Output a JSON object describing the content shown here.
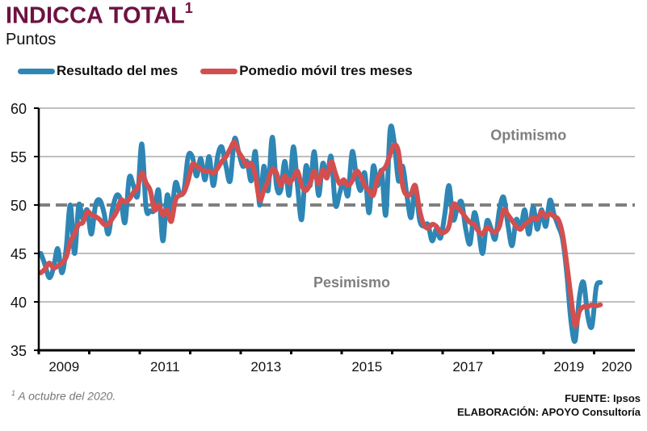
{
  "header": {
    "title": "INDICCA TOTAL",
    "title_superscript": "1",
    "subtitle": "Puntos"
  },
  "legend": [
    {
      "label": "Resultado del mes",
      "color": "#2e86b5"
    },
    {
      "label": "Pomedio móvil tres meses",
      "color": "#d34f4f"
    }
  ],
  "footer": {
    "footnote_marker": "1",
    "footnote": " A octubre del 2020.",
    "source": "FUENTE: Ipsos",
    "elaboration": "ELABORACIÓN: APOYO Consultoría"
  },
  "chart_data": {
    "type": "line",
    "title": "INDICCA TOTAL",
    "subtitle": "Puntos",
    "xlabel": "",
    "ylabel": "Puntos",
    "ylim": [
      35,
      60
    ],
    "yticks": [
      35,
      40,
      45,
      50,
      55,
      60
    ],
    "xlim": [
      "2009-01",
      "2020-10"
    ],
    "xtick_labels": [
      "2009",
      "2011",
      "2013",
      "2015",
      "2017",
      "2019",
      "2020"
    ],
    "xtick_label_years": [
      2009,
      2011,
      2013,
      2015,
      2017,
      2019,
      2020
    ],
    "grid": "horizontal",
    "reference_line": {
      "value": 50,
      "style": "dashed",
      "color": "#7f7f7f"
    },
    "annotations": [
      {
        "text": "Optimismo",
        "x_year": 2018.7,
        "y": 56.7
      },
      {
        "text": "Pesimismo",
        "x_year": 2015.2,
        "y": 41.5
      }
    ],
    "start_month": "2009-01",
    "frequency": "monthly",
    "series": [
      {
        "name": "Resultado del mes",
        "color": "#2e86b5",
        "values": [
          45.0,
          43.8,
          42.5,
          43.5,
          45.5,
          43.0,
          45.5,
          50.0,
          45.0,
          50.0,
          48.5,
          49.5,
          47.0,
          50.0,
          50.5,
          49.2,
          47.0,
          49.5,
          51.0,
          50.5,
          48.2,
          52.8,
          52.0,
          51.0,
          56.3,
          49.7,
          49.4,
          49.5,
          51.5,
          46.3,
          51.0,
          49.2,
          52.3,
          51.2,
          51.5,
          55.0,
          55.0,
          53.0,
          54.8,
          52.6,
          55.0,
          52.0,
          55.0,
          56.0,
          54.0,
          52.5,
          56.8,
          55.5,
          54.0,
          54.5,
          52.5,
          55.5,
          50.0,
          54.0,
          51.5,
          57.0,
          52.0,
          51.5,
          54.5,
          51.0,
          56.0,
          52.0,
          48.5,
          54.0,
          52.0,
          55.5,
          51.0,
          54.3,
          52.8,
          55.0,
          50.0,
          51.2,
          52.5,
          51.0,
          55.5,
          53.0,
          51.5,
          53.3,
          49.2,
          54.0,
          52.0,
          53.5,
          49.0,
          57.7,
          56.5,
          52.5,
          54.0,
          51.0,
          48.7,
          52.0,
          48.5,
          47.8,
          48.0,
          46.3,
          47.5,
          46.6,
          49.0,
          52.0,
          48.5,
          49.7,
          50.3,
          47.5,
          46.0,
          49.2,
          47.5,
          45.0,
          48.3,
          47.6,
          46.5,
          49.5,
          50.8,
          48.0,
          45.8,
          48.5,
          47.5,
          49.5,
          47.0,
          49.8,
          47.5,
          49.5,
          47.8,
          50.5,
          49.0,
          47.8,
          46.5,
          43.0,
          38.0,
          36.0,
          40.5,
          42.0,
          38.5,
          37.5,
          41.5,
          42.0
        ]
      },
      {
        "name": "Pomedio móvil tres meses",
        "color": "#d34f4f",
        "values": [
          43.0,
          43.4,
          44.0,
          43.5,
          43.7,
          44.0,
          44.6,
          46.2,
          47.0,
          48.0,
          48.2,
          49.3,
          49.0,
          48.8,
          48.5,
          48.0,
          48.0,
          48.6,
          49.3,
          50.5,
          50.3,
          50.6,
          51.3,
          51.8,
          53.3,
          52.3,
          51.5,
          49.5,
          50.0,
          49.0,
          49.5,
          48.3,
          50.5,
          51.0,
          51.3,
          52.5,
          54.2,
          54.0,
          53.7,
          53.5,
          53.5,
          53.3,
          53.8,
          54.5,
          55.0,
          55.8,
          56.5,
          55.5,
          54.8,
          54.0,
          54.3,
          53.0,
          50.5,
          51.5,
          52.5,
          53.7,
          53.3,
          52.0,
          53.0,
          52.3,
          52.8,
          53.5,
          52.0,
          51.5,
          52.2,
          53.5,
          52.2,
          53.6,
          52.8,
          54.5,
          53.3,
          52.2,
          52.6,
          52.0,
          52.5,
          53.5,
          53.0,
          52.0,
          51.5,
          51.0,
          52.7,
          53.5,
          54.0,
          55.2,
          56.2,
          55.5,
          52.0,
          51.0,
          51.2,
          52.0,
          49.5,
          48.0,
          47.6,
          48.0,
          47.8,
          47.2,
          47.2,
          47.8,
          50.0,
          49.8,
          49.3,
          48.7,
          48.2,
          48.0,
          47.3,
          47.0,
          47.7,
          47.4,
          47.2,
          47.8,
          49.5,
          49.0,
          48.4,
          47.8,
          47.5,
          48.0,
          48.3,
          48.7,
          48.5,
          49.3,
          48.8,
          49.1,
          48.8,
          48.5,
          47.0,
          44.0,
          40.5,
          37.5,
          39.0,
          39.5,
          39.5,
          39.7,
          39.6,
          39.7
        ]
      }
    ]
  }
}
